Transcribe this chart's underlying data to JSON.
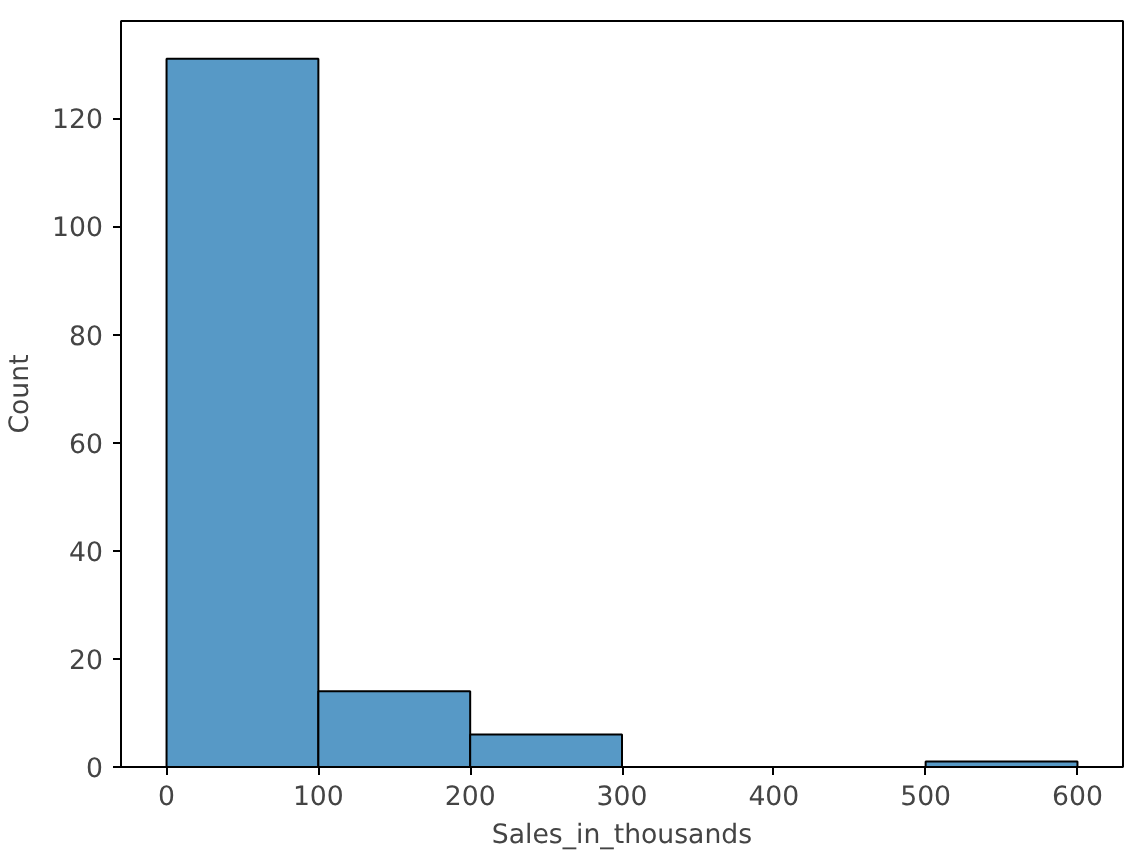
{
  "chart_data": {
    "type": "histogram",
    "xlabel": "Sales_in_thousands",
    "ylabel": "Count",
    "bins": [
      0,
      100,
      200,
      300,
      400,
      500,
      600
    ],
    "values": [
      131,
      14,
      6,
      0,
      0,
      1
    ],
    "color": "#5799c6",
    "xlim": [
      -30,
      630
    ],
    "ylim": [
      0,
      138
    ],
    "xticks": [
      0,
      100,
      200,
      300,
      400,
      500,
      600
    ],
    "yticks": [
      0,
      20,
      40,
      60,
      80,
      100,
      120
    ],
    "grid": false
  }
}
